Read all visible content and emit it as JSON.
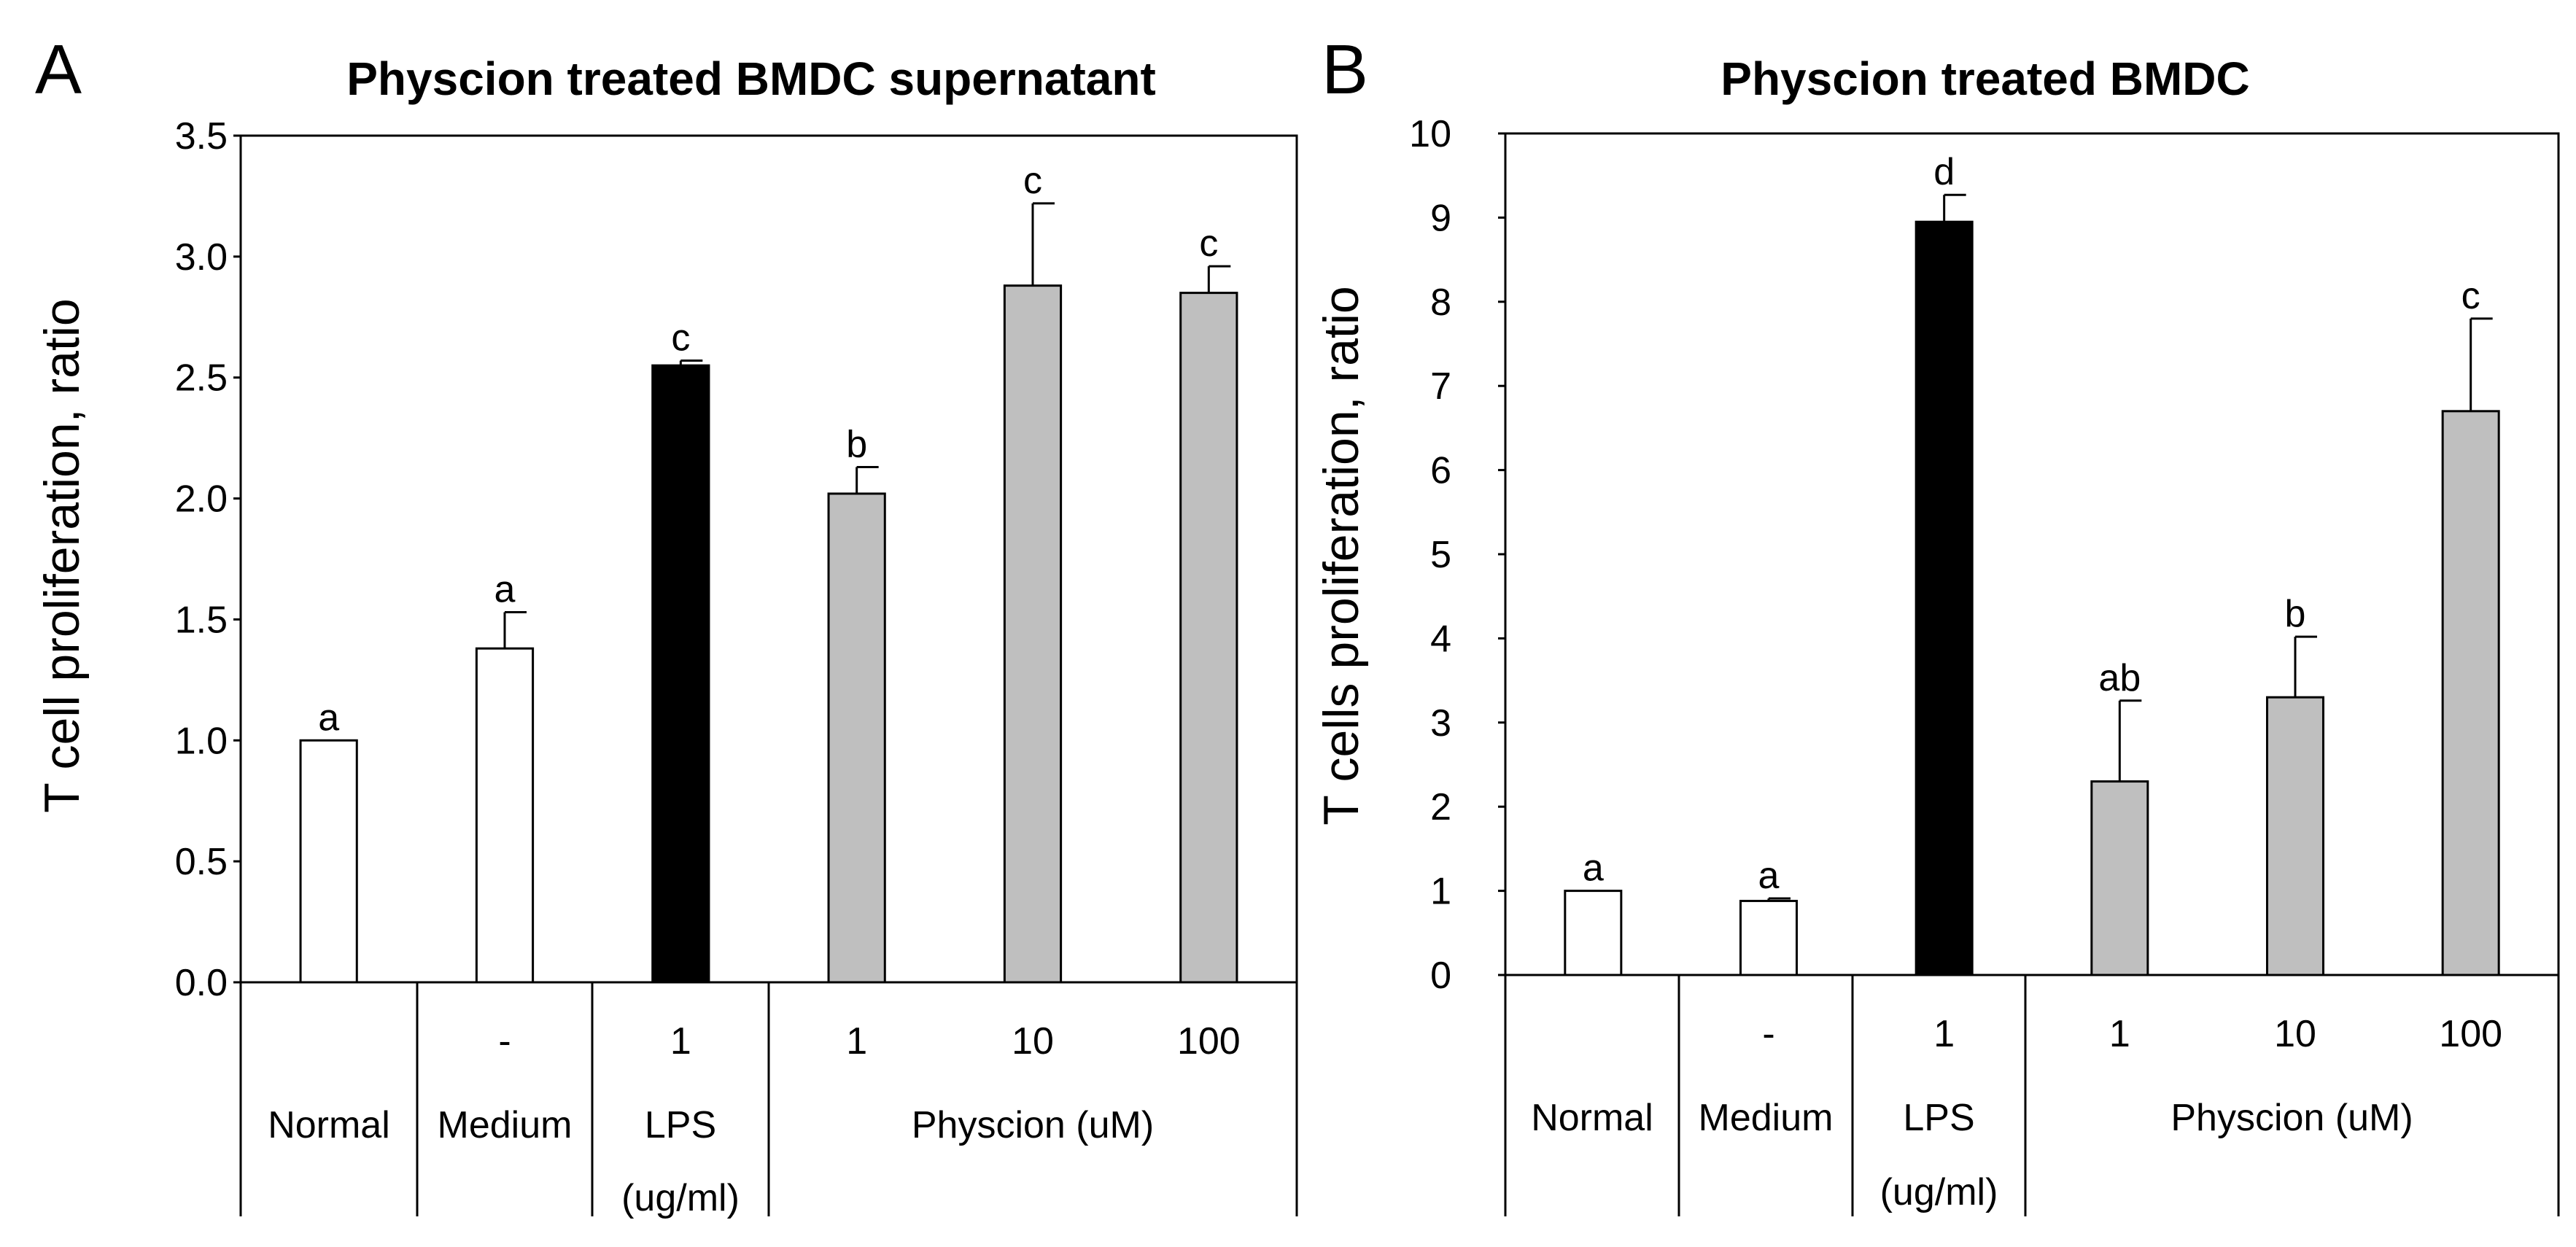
{
  "chart_data": [
    {
      "panel": "A",
      "type": "bar",
      "title": "Physcion treated BMDC supernatant",
      "ylabel": "T cell proliferation, ratio",
      "ylim": [
        0,
        3.5
      ],
      "yticks": [
        "0.0",
        "0.5",
        "1.0",
        "1.5",
        "2.0",
        "2.5",
        "3.0",
        "3.5"
      ],
      "bars": [
        {
          "value": 1.0,
          "error": 0.0,
          "sig": "a",
          "color": "#ffffff"
        },
        {
          "value": 1.38,
          "error": 0.15,
          "sig": "a",
          "color": "#ffffff"
        },
        {
          "value": 2.55,
          "error": 0.02,
          "sig": "c",
          "color": "#000000"
        },
        {
          "value": 2.02,
          "error": 0.11,
          "sig": "b",
          "color": "#bfbfbf"
        },
        {
          "value": 2.88,
          "error": 0.34,
          "sig": "c",
          "color": "#bfbfbf"
        },
        {
          "value": 2.85,
          "error": 0.11,
          "sig": "c",
          "color": "#bfbfbf"
        }
      ],
      "dose_labels": [
        "",
        "-",
        "1",
        "1",
        "10",
        "100"
      ],
      "groups": [
        {
          "label": [
            "Normal"
          ],
          "span": [
            0,
            0
          ]
        },
        {
          "label": [
            "Medium"
          ],
          "span": [
            1,
            1
          ]
        },
        {
          "label": [
            "LPS",
            "(ug/ml)"
          ],
          "span": [
            2,
            2
          ]
        },
        {
          "label": [
            "Physcion (uM)"
          ],
          "span": [
            3,
            5
          ]
        }
      ]
    },
    {
      "panel": "B",
      "type": "bar",
      "title": "Physcion treated BMDC",
      "ylabel": "T cells proliferation, ratio",
      "ylim": [
        0,
        10
      ],
      "yticks": [
        "0",
        "1",
        "2",
        "3",
        "4",
        "5",
        "6",
        "7",
        "8",
        "9",
        "10"
      ],
      "bars": [
        {
          "value": 1.0,
          "error": 0.0,
          "sig": "a",
          "color": "#ffffff"
        },
        {
          "value": 0.88,
          "error": 0.03,
          "sig": "a",
          "color": "#ffffff"
        },
        {
          "value": 8.95,
          "error": 0.32,
          "sig": "d",
          "color": "#000000"
        },
        {
          "value": 2.3,
          "error": 0.96,
          "sig": "ab",
          "color": "#bfbfbf"
        },
        {
          "value": 3.3,
          "error": 0.72,
          "sig": "b",
          "color": "#bfbfbf"
        },
        {
          "value": 6.7,
          "error": 1.1,
          "sig": "c",
          "color": "#bfbfbf"
        }
      ],
      "dose_labels": [
        "",
        "-",
        "1",
        "1",
        "10",
        "100"
      ],
      "groups": [
        {
          "label": [
            "Normal"
          ],
          "span": [
            0,
            0
          ]
        },
        {
          "label": [
            "Medium"
          ],
          "span": [
            1,
            1
          ]
        },
        {
          "label": [
            "LPS",
            "(ug/ml)"
          ],
          "span": [
            2,
            2
          ]
        },
        {
          "label": [
            "Physcion (uM)"
          ],
          "span": [
            3,
            5
          ]
        }
      ]
    }
  ]
}
